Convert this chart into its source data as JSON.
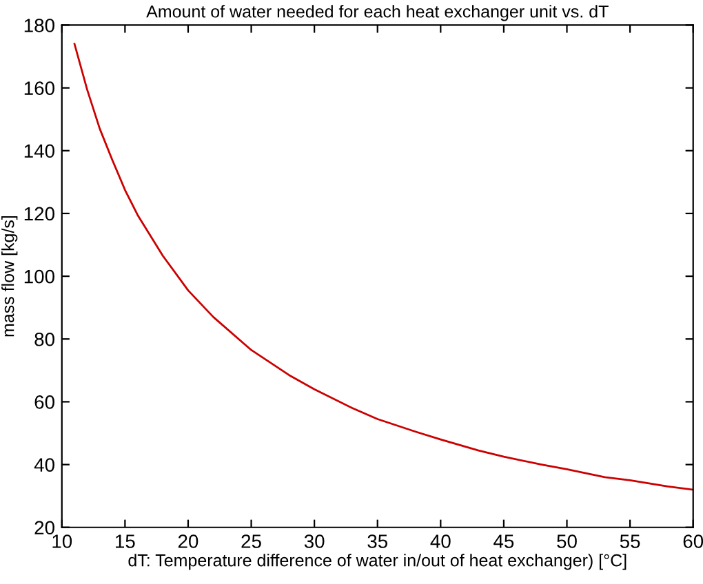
{
  "chart_data": {
    "type": "line",
    "title": "Amount of water needed for each heat exchanger unit vs. dT",
    "xlabel": "dT: Temperature difference of water in/out of heat exchanger) [°C]",
    "ylabel": "mass flow [kg/s]",
    "x": [
      11,
      12,
      13,
      14,
      15,
      16,
      18,
      20,
      22,
      25,
      28,
      30,
      33,
      35,
      38,
      40,
      43,
      45,
      48,
      50,
      53,
      55,
      58,
      60
    ],
    "series": [
      {
        "color": "#cc0000",
        "values": [
          174,
          159.5,
          147,
          137,
          127.5,
          119.5,
          106.5,
          95.5,
          87,
          76.5,
          68.5,
          64,
          58,
          54.5,
          50.5,
          48,
          44.5,
          42.5,
          40,
          38.5,
          36,
          35,
          33,
          32
        ]
      }
    ],
    "xlim": [
      10,
      60
    ],
    "xticks": [
      10,
      15,
      20,
      25,
      30,
      35,
      40,
      45,
      50,
      55,
      60
    ],
    "ylim": [
      20,
      180
    ],
    "yticks": [
      20,
      40,
      60,
      80,
      100,
      120,
      140,
      160,
      180
    ],
    "grid": false,
    "marker": "none",
    "line_style": "solid"
  }
}
